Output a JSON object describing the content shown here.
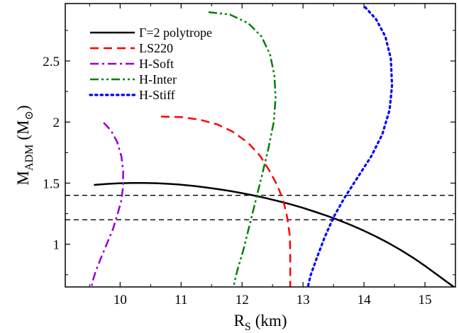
{
  "chart_data": {
    "type": "line",
    "title": "",
    "xlabel": "R",
    "xlabel_sub": "S",
    "xlabel_unit": "(km)",
    "ylabel": "M",
    "ylabel_sub": "ADM",
    "ylabel_unit": "(M",
    "ylabel_unit_symbol": "⊙",
    "ylabel_close": ")",
    "xlim": [
      9.1,
      15.5
    ],
    "ylim": [
      0.65,
      2.97
    ],
    "xticks": [
      10,
      11,
      12,
      13,
      14,
      15
    ],
    "yticks": [
      1,
      1.5,
      2,
      2.5
    ],
    "ytick_labels": [
      "1",
      "1.5",
      "2",
      "2.5"
    ],
    "grid": false,
    "legend_position": "top-left",
    "reference_lines": [
      {
        "y": 1.4,
        "style": "dashed",
        "color": "#000000"
      },
      {
        "y": 1.2,
        "style": "dashed",
        "color": "#000000"
      }
    ],
    "series": [
      {
        "name": "Γ=2 polytrope",
        "color": "#000000",
        "style": "solid",
        "points": [
          [
            9.57,
            1.485
          ],
          [
            9.8,
            1.494
          ],
          [
            10.0,
            1.499
          ],
          [
            10.2,
            1.501
          ],
          [
            10.4,
            1.501
          ],
          [
            10.6,
            1.499
          ],
          [
            10.8,
            1.494
          ],
          [
            11.0,
            1.487
          ],
          [
            11.2,
            1.477
          ],
          [
            11.4,
            1.465
          ],
          [
            11.6,
            1.451
          ],
          [
            11.8,
            1.436
          ],
          [
            12.0,
            1.418
          ],
          [
            12.2,
            1.398
          ],
          [
            12.4,
            1.376
          ],
          [
            12.6,
            1.352
          ],
          [
            12.8,
            1.326
          ],
          [
            13.0,
            1.297
          ],
          [
            13.2,
            1.265
          ],
          [
            13.4,
            1.231
          ],
          [
            13.6,
            1.194
          ],
          [
            13.8,
            1.154
          ],
          [
            14.0,
            1.11
          ],
          [
            14.2,
            1.062
          ],
          [
            14.4,
            1.01
          ],
          [
            14.6,
            0.953
          ],
          [
            14.8,
            0.891
          ],
          [
            15.0,
            0.823
          ],
          [
            15.2,
            0.75
          ],
          [
            15.35,
            0.695
          ],
          [
            15.5,
            0.64
          ]
        ]
      },
      {
        "name": "LS220",
        "color": "#ff0000",
        "style": "dashed",
        "points": [
          [
            10.67,
            2.045
          ],
          [
            11.0,
            2.04
          ],
          [
            11.3,
            2.02
          ],
          [
            11.6,
            1.98
          ],
          [
            11.85,
            1.92
          ],
          [
            12.1,
            1.83
          ],
          [
            12.3,
            1.72
          ],
          [
            12.45,
            1.6
          ],
          [
            12.58,
            1.48
          ],
          [
            12.68,
            1.35
          ],
          [
            12.74,
            1.22
          ],
          [
            12.78,
            1.08
          ],
          [
            12.79,
            0.95
          ],
          [
            12.79,
            0.8
          ],
          [
            12.79,
            0.65
          ]
        ]
      },
      {
        "name": "H-Soft",
        "color": "#9400d3",
        "style": "dashdot",
        "points": [
          [
            9.73,
            1.995
          ],
          [
            9.85,
            1.93
          ],
          [
            9.95,
            1.84
          ],
          [
            10.02,
            1.72
          ],
          [
            10.05,
            1.6
          ],
          [
            10.05,
            1.48
          ],
          [
            10.02,
            1.36
          ],
          [
            9.96,
            1.25
          ],
          [
            9.88,
            1.12
          ],
          [
            9.78,
            1.0
          ],
          [
            9.68,
            0.88
          ],
          [
            9.6,
            0.78
          ],
          [
            9.55,
            0.7
          ],
          [
            9.53,
            0.65
          ]
        ]
      },
      {
        "name": "H-Inter",
        "color": "#008000",
        "style": "dashdotdot",
        "points": [
          [
            11.45,
            2.9
          ],
          [
            11.8,
            2.88
          ],
          [
            12.1,
            2.81
          ],
          [
            12.32,
            2.7
          ],
          [
            12.46,
            2.55
          ],
          [
            12.53,
            2.38
          ],
          [
            12.55,
            2.2
          ],
          [
            12.52,
            2.0
          ],
          [
            12.43,
            1.78
          ],
          [
            12.32,
            1.55
          ],
          [
            12.22,
            1.35
          ],
          [
            12.12,
            1.15
          ],
          [
            12.02,
            0.95
          ],
          [
            11.93,
            0.8
          ],
          [
            11.88,
            0.7
          ],
          [
            11.86,
            0.65
          ]
        ]
      },
      {
        "name": "H-Stiff",
        "color": "#0000ff",
        "style": "dotted",
        "points": [
          [
            14.02,
            2.94
          ],
          [
            14.2,
            2.84
          ],
          [
            14.35,
            2.7
          ],
          [
            14.44,
            2.52
          ],
          [
            14.46,
            2.3
          ],
          [
            14.42,
            2.1
          ],
          [
            14.3,
            1.9
          ],
          [
            14.12,
            1.72
          ],
          [
            13.9,
            1.55
          ],
          [
            13.68,
            1.38
          ],
          [
            13.5,
            1.22
          ],
          [
            13.35,
            1.05
          ],
          [
            13.22,
            0.88
          ],
          [
            13.12,
            0.74
          ],
          [
            13.08,
            0.65
          ]
        ]
      }
    ]
  }
}
